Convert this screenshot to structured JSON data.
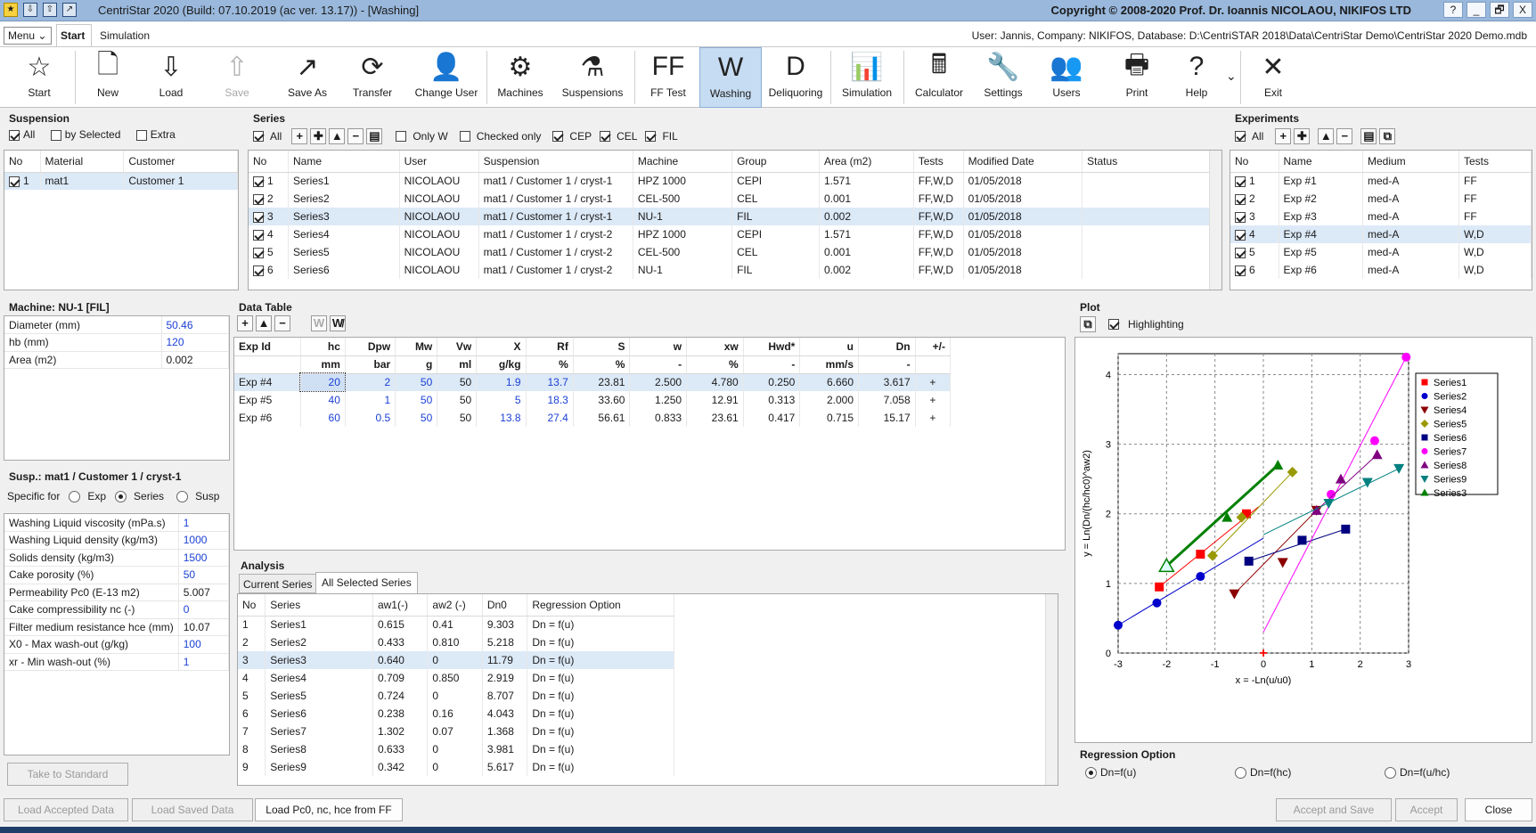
{
  "window": {
    "title": "CentriStar 2020 (Build: 07.10.2019 (ac ver. 13.17)) - [Washing]",
    "copyright": "Copyright © 2008-2020 Prof. Dr. Ioannis NICOLAOU, NIKIFOS LTD",
    "help_btn": "?",
    "min_btn": "_",
    "restore_btn": "🗗",
    "close_btn": "X"
  },
  "menubar": {
    "menu_label": "Menu",
    "tab_start": "Start",
    "tab_simulation": "Simulation",
    "user_info": "User: Jannis, Company: NIKIFOS, Database: D:\\CentriSTAR 2018\\Data\\CentriStar  Demo\\CentriStar 2020  Demo.mdb"
  },
  "ribbon": [
    {
      "label": "Start",
      "icon": "☆"
    },
    {
      "label": "New",
      "icon": "🗋"
    },
    {
      "label": "Load",
      "icon": "⇩"
    },
    {
      "label": "Save",
      "icon": "⇧"
    },
    {
      "label": "Save As",
      "icon": "↗"
    },
    {
      "label": "Transfer",
      "icon": "⟳"
    },
    {
      "label": "Change User",
      "icon": "👤"
    },
    {
      "label": "Machines",
      "icon": "⚙"
    },
    {
      "label": "Suspensions",
      "icon": "⚗"
    },
    {
      "label": "FF Test",
      "icon": "FF"
    },
    {
      "label": "Washing",
      "icon": "W"
    },
    {
      "label": "Deliquoring",
      "icon": "D"
    },
    {
      "label": "Simulation",
      "icon": "📊"
    },
    {
      "label": "Calculator",
      "icon": "🖩"
    },
    {
      "label": "Settings",
      "icon": "🔧"
    },
    {
      "label": "Users",
      "icon": "👥"
    },
    {
      "label": "Print",
      "icon": "🖶"
    },
    {
      "label": "Help",
      "icon": "?"
    },
    {
      "label": "Exit",
      "icon": "✕"
    }
  ],
  "suspension": {
    "title": "Suspension",
    "all": "All",
    "by_selected": "by Selected",
    "extra": "Extra",
    "headers": [
      "No",
      "Material",
      "Customer"
    ],
    "rows": [
      [
        "1",
        "mat1",
        "Customer 1"
      ]
    ]
  },
  "series": {
    "title": "Series",
    "all": "All",
    "only_w": "Only W",
    "checked_only": "Checked only",
    "cep": "CEP",
    "cel": "CEL",
    "fil": "FIL",
    "headers": [
      "No",
      "Name",
      "User",
      "Suspension",
      "Machine",
      "Group",
      "Area (m2)",
      "Tests",
      "Modified Date",
      "Status"
    ],
    "rows": [
      [
        "1",
        "Series1",
        "NICOLAOU",
        "mat1 / Customer 1 / cryst-1",
        "HPZ 1000",
        "CEPI",
        "1.571",
        "FF,W,D",
        "01/05/2018",
        ""
      ],
      [
        "2",
        "Series2",
        "NICOLAOU",
        "mat1 / Customer 1 / cryst-1",
        "CEL-500",
        "CEL",
        "0.001",
        "FF,W,D",
        "01/05/2018",
        ""
      ],
      [
        "3",
        "Series3",
        "NICOLAOU",
        "mat1 / Customer 1 / cryst-1",
        "NU-1",
        "FIL",
        "0.002",
        "FF,W,D",
        "01/05/2018",
        ""
      ],
      [
        "4",
        "Series4",
        "NICOLAOU",
        "mat1 / Customer 1 / cryst-2",
        "HPZ 1000",
        "CEPI",
        "1.571",
        "FF,W,D",
        "01/05/2018",
        ""
      ],
      [
        "5",
        "Series5",
        "NICOLAOU",
        "mat1 / Customer 1 / cryst-2",
        "CEL-500",
        "CEL",
        "0.001",
        "FF,W,D",
        "01/05/2018",
        ""
      ],
      [
        "6",
        "Series6",
        "NICOLAOU",
        "mat1 / Customer 1 / cryst-2",
        "NU-1",
        "FIL",
        "0.002",
        "FF,W,D",
        "01/05/2018",
        ""
      ]
    ]
  },
  "experiments": {
    "title": "Experiments",
    "all": "All",
    "headers": [
      "No",
      "Name",
      "Medium",
      "Tests"
    ],
    "rows": [
      [
        "1",
        "Exp #1",
        "med-A",
        "FF"
      ],
      [
        "2",
        "Exp #2",
        "med-A",
        "FF"
      ],
      [
        "3",
        "Exp #3",
        "med-A",
        "FF"
      ],
      [
        "4",
        "Exp #4",
        "med-A",
        "W,D"
      ],
      [
        "5",
        "Exp #5",
        "med-A",
        "W,D"
      ],
      [
        "6",
        "Exp #6",
        "med-A",
        "W,D"
      ]
    ]
  },
  "machine": {
    "title": "Machine: NU-1 [FIL]",
    "rows": [
      [
        "Diameter (mm)",
        "50.46"
      ],
      [
        "hb (mm)",
        "120"
      ],
      [
        "Area (m2)",
        "0.002"
      ]
    ]
  },
  "susp": {
    "title": "Susp.: mat1 / Customer 1 / cryst-1",
    "specific_for": "Specific for",
    "opt_exp": "Exp",
    "opt_series": "Series",
    "opt_susp": "Susp",
    "rows": [
      [
        "Washing Liquid viscosity (mPa.s)",
        "1"
      ],
      [
        "Washing Liquid density (kg/m3)",
        "1000"
      ],
      [
        "Solids density (kg/m3)",
        "1500"
      ],
      [
        "Cake porosity (%)",
        "50"
      ],
      [
        "Permeability Pc0 (E-13 m2)",
        "5.007"
      ],
      [
        "Cake compressibility nc (-)",
        "0"
      ],
      [
        "Filter medium resistance hce (mm)",
        "10.07"
      ],
      [
        "X0 - Max wash-out (g/kg)",
        "100"
      ],
      [
        "xr - Min wash-out (%)",
        "1"
      ]
    ],
    "take_standard": "Take to Standard"
  },
  "datatable": {
    "title": "Data Table",
    "headers": [
      "Exp Id",
      "hc",
      "Dpw",
      "Mw",
      "Vw",
      "X",
      "Rf",
      "S",
      "w",
      "xw",
      "Hwd*",
      "u",
      "Dn",
      "+/-"
    ],
    "units": [
      "",
      "mm",
      "bar",
      "g",
      "ml",
      "g/kg",
      "%",
      "%",
      "-",
      "%",
      "-",
      "mm/s",
      "-",
      ""
    ],
    "rows": [
      [
        "Exp #4",
        "20",
        "2",
        "50",
        "50",
        "1.9",
        "13.7",
        "23.81",
        "2.500",
        "4.780",
        "0.250",
        "6.660",
        "3.617",
        "+"
      ],
      [
        "Exp #5",
        "40",
        "1",
        "50",
        "50",
        "5",
        "18.3",
        "33.60",
        "1.250",
        "12.91",
        "0.313",
        "2.000",
        "7.058",
        "+"
      ],
      [
        "Exp #6",
        "60",
        "0.5",
        "50",
        "50",
        "13.8",
        "27.4",
        "56.61",
        "0.833",
        "23.61",
        "0.417",
        "0.715",
        "15.17",
        "+"
      ]
    ]
  },
  "analysis": {
    "title": "Analysis",
    "tab_current": "Current Series",
    "tab_all": "All Selected Series",
    "headers": [
      "No",
      "Series",
      "aw1(-)",
      "aw2 (-)",
      "Dn0",
      "Regression Option"
    ],
    "rows": [
      [
        "1",
        "Series1",
        "0.615",
        "0.41",
        "9.303",
        "Dn = f(u)"
      ],
      [
        "2",
        "Series2",
        "0.433",
        "0.810",
        "5.218",
        "Dn = f(u)"
      ],
      [
        "3",
        "Series3",
        "0.640",
        "0",
        "11.79",
        "Dn = f(u)"
      ],
      [
        "4",
        "Series4",
        "0.709",
        "0.850",
        "2.919",
        "Dn = f(u)"
      ],
      [
        "5",
        "Series5",
        "0.724",
        "0",
        "8.707",
        "Dn = f(u)"
      ],
      [
        "6",
        "Series6",
        "0.238",
        "0.16",
        "4.043",
        "Dn = f(u)"
      ],
      [
        "7",
        "Series7",
        "1.302",
        "0.07",
        "1.368",
        "Dn = f(u)"
      ],
      [
        "8",
        "Series8",
        "0.633",
        "0",
        "3.981",
        "Dn = f(u)"
      ],
      [
        "9",
        "Series9",
        "0.342",
        "0",
        "5.617",
        "Dn = f(u)"
      ]
    ]
  },
  "plot": {
    "title": "Plot",
    "highlighting": "Highlighting",
    "xlabel": "x = -Ln(u/u0)",
    "ylabel": "y = Ln(Dn/(hc/hc0)^aw2)",
    "xticks": [
      "-3",
      "-2",
      "-1",
      "0",
      "1",
      "2",
      "3"
    ],
    "yticks": [
      "0",
      "1",
      "2",
      "3",
      "4"
    ]
  },
  "chart_data": {
    "type": "scatter",
    "xlabel": "x = -Ln(u/u0)",
    "ylabel": "y = Ln(Dn/(hc/hc0)^aw2)",
    "xlim": [
      -3,
      3
    ],
    "ylim": [
      0,
      4.3
    ],
    "grid": true,
    "legend_position": "right",
    "series": [
      {
        "name": "Series1",
        "color": "#ff0000",
        "marker": "square",
        "points": [
          [
            -2.15,
            0.95
          ],
          [
            -1.3,
            1.42
          ],
          [
            -0.35,
            2.0
          ]
        ],
        "line": [
          [
            -2.15,
            0.95
          ],
          [
            -0.1,
            2.1
          ]
        ]
      },
      {
        "name": "Series2",
        "color": "#0000cc",
        "marker": "circle",
        "points": [
          [
            -3.0,
            0.4
          ],
          [
            -2.2,
            0.72
          ],
          [
            -1.3,
            1.1
          ]
        ],
        "line": [
          [
            -3.0,
            0.4
          ],
          [
            0.0,
            1.65
          ]
        ]
      },
      {
        "name": "Series4",
        "color": "#8b0000",
        "marker": "tri-down",
        "points": [
          [
            -0.6,
            0.85
          ],
          [
            0.4,
            1.3
          ],
          [
            1.1,
            2.05
          ]
        ],
        "line": [
          [
            -0.6,
            0.85
          ],
          [
            1.1,
            2.05
          ]
        ]
      },
      {
        "name": "Series5",
        "color": "#999900",
        "marker": "diamond",
        "points": [
          [
            -1.05,
            1.4
          ],
          [
            -0.45,
            1.95
          ],
          [
            0.6,
            2.6
          ]
        ],
        "line": [
          [
            -1.05,
            1.4
          ],
          [
            0.6,
            2.6
          ]
        ]
      },
      {
        "name": "Series6",
        "color": "#000080",
        "marker": "square",
        "points": [
          [
            -0.3,
            1.32
          ],
          [
            0.8,
            1.62
          ],
          [
            1.7,
            1.78
          ]
        ],
        "line": [
          [
            -0.3,
            1.32
          ],
          [
            1.7,
            1.78
          ]
        ]
      },
      {
        "name": "Series7",
        "color": "#ff00ff",
        "marker": "circle",
        "points": [
          [
            1.4,
            2.28
          ],
          [
            2.3,
            3.05
          ],
          [
            2.95,
            4.25
          ]
        ],
        "line": [
          [
            0.0,
            0.3
          ],
          [
            2.95,
            4.25
          ]
        ]
      },
      {
        "name": "Series8",
        "color": "#800080",
        "marker": "tri-up",
        "points": [
          [
            1.1,
            2.05
          ],
          [
            1.6,
            2.5
          ],
          [
            2.35,
            2.85
          ]
        ],
        "line": [
          [
            1.1,
            2.05
          ],
          [
            2.35,
            2.85
          ]
        ]
      },
      {
        "name": "Series9",
        "color": "#008080",
        "marker": "tri-down",
        "points": [
          [
            1.35,
            2.15
          ],
          [
            2.15,
            2.45
          ],
          [
            2.8,
            2.65
          ]
        ],
        "line": [
          [
            0.0,
            1.7
          ],
          [
            2.8,
            2.65
          ]
        ]
      },
      {
        "name": "Series3",
        "color": "#008000",
        "marker": "tri-up",
        "points": [
          [
            -2.0,
            1.25
          ],
          [
            -0.75,
            1.95
          ],
          [
            0.3,
            2.7
          ]
        ],
        "line": [
          [
            -2.0,
            1.25
          ],
          [
            0.3,
            2.7
          ]
        ]
      }
    ],
    "extra_marker": {
      "color": "#ff0000",
      "point": [
        0.0,
        0.0
      ],
      "marker": "plus"
    }
  },
  "regression": {
    "title": "Regression Option",
    "opt1": "Dn=f(u)",
    "opt2": "Dn=f(hc)",
    "opt3": "Dn=f(u/hc)"
  },
  "footer": {
    "load_accepted": "Load Accepted Data",
    "load_saved": "Load Saved Data",
    "load_pc0": "Load Pc0, nc, hce from FF",
    "accept_save": "Accept and Save",
    "accept": "Accept",
    "close": "Close"
  }
}
